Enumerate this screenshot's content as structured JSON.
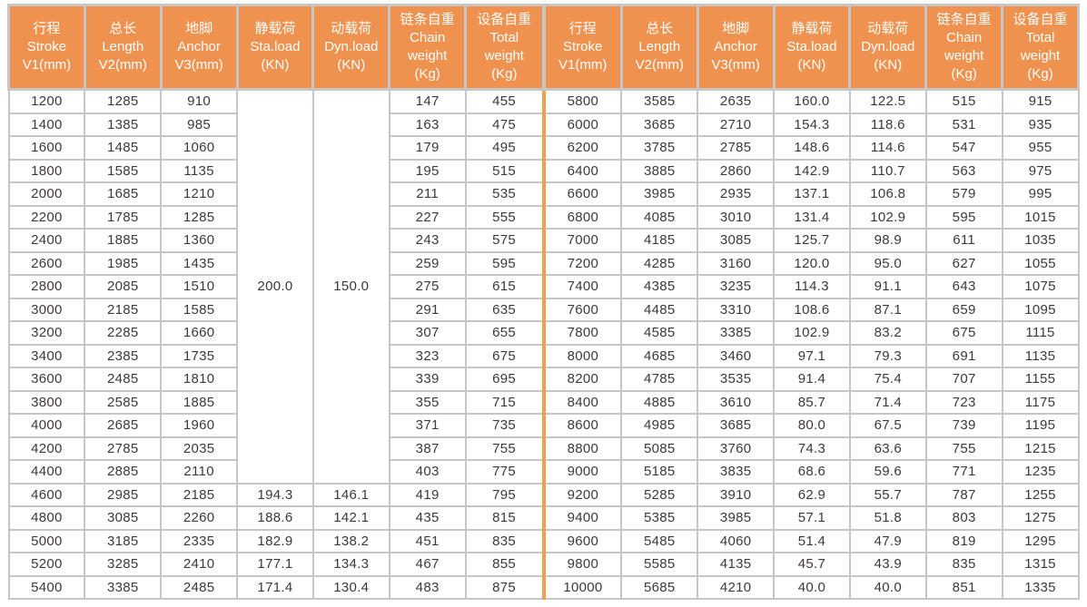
{
  "colors": {
    "header_bg": "#F0924F",
    "divider_orange": "#F0A050",
    "border_gray": "#C6C6C6",
    "header_text": "#FFFFFF",
    "cell_text": "#3C3938",
    "page_bg": "#FFFFFF"
  },
  "table": {
    "column_headers": [
      {
        "name": "stroke",
        "lines": [
          "行程",
          "Stroke",
          "V1(mm)"
        ]
      },
      {
        "name": "length",
        "lines": [
          "总长",
          "Length",
          "V2(mm)"
        ]
      },
      {
        "name": "anchor",
        "lines": [
          "地脚",
          "Anchor",
          "V3(mm)"
        ]
      },
      {
        "name": "static-load",
        "lines": [
          "静载荷",
          "Sta.load",
          "(KN)"
        ]
      },
      {
        "name": "dynamic-load",
        "lines": [
          "动载荷",
          "Dyn.load",
          "(KN)"
        ]
      },
      {
        "name": "chain-weight",
        "lines": [
          "链条自重",
          "Chain",
          "weight",
          "(Kg)"
        ]
      },
      {
        "name": "total-weight",
        "lines": [
          "设备自重",
          "Total",
          "weight",
          "(Kg)"
        ]
      }
    ],
    "left": {
      "merged": {
        "sta_load": "200.0",
        "dyn_load": "150.0",
        "row_span": 17
      },
      "rows": [
        [
          "1200",
          "1285",
          "910",
          null,
          null,
          "147",
          "455"
        ],
        [
          "1400",
          "1385",
          "985",
          null,
          null,
          "163",
          "475"
        ],
        [
          "1600",
          "1485",
          "1060",
          null,
          null,
          "179",
          "495"
        ],
        [
          "1800",
          "1585",
          "1135",
          null,
          null,
          "195",
          "515"
        ],
        [
          "2000",
          "1685",
          "1210",
          null,
          null,
          "211",
          "535"
        ],
        [
          "2200",
          "1785",
          "1285",
          null,
          null,
          "227",
          "555"
        ],
        [
          "2400",
          "1885",
          "1360",
          null,
          null,
          "243",
          "575"
        ],
        [
          "2600",
          "1985",
          "1435",
          null,
          null,
          "259",
          "595"
        ],
        [
          "2800",
          "2085",
          "1510",
          null,
          null,
          "275",
          "615"
        ],
        [
          "3000",
          "2185",
          "1585",
          null,
          null,
          "291",
          "635"
        ],
        [
          "3200",
          "2285",
          "1660",
          null,
          null,
          "307",
          "655"
        ],
        [
          "3400",
          "2385",
          "1735",
          null,
          null,
          "323",
          "675"
        ],
        [
          "3600",
          "2485",
          "1810",
          null,
          null,
          "339",
          "695"
        ],
        [
          "3800",
          "2585",
          "1885",
          null,
          null,
          "355",
          "715"
        ],
        [
          "4000",
          "2685",
          "1960",
          null,
          null,
          "371",
          "735"
        ],
        [
          "4200",
          "2785",
          "2035",
          null,
          null,
          "387",
          "755"
        ],
        [
          "4400",
          "2885",
          "2110",
          null,
          null,
          "403",
          "775"
        ],
        [
          "4600",
          "2985",
          "2185",
          "194.3",
          "146.1",
          "419",
          "795"
        ],
        [
          "4800",
          "3085",
          "2260",
          "188.6",
          "142.1",
          "435",
          "815"
        ],
        [
          "5000",
          "3185",
          "2335",
          "182.9",
          "138.2",
          "451",
          "835"
        ],
        [
          "5200",
          "3285",
          "2410",
          "177.1",
          "134.3",
          "467",
          "855"
        ],
        [
          "5400",
          "3385",
          "2485",
          "171.4",
          "130.4",
          "483",
          "875"
        ]
      ]
    },
    "right": {
      "rows": [
        [
          "5800",
          "3585",
          "2635",
          "160.0",
          "122.5",
          "515",
          "915"
        ],
        [
          "6000",
          "3685",
          "2710",
          "154.3",
          "118.6",
          "531",
          "935"
        ],
        [
          "6200",
          "3785",
          "2785",
          "148.6",
          "114.6",
          "547",
          "955"
        ],
        [
          "6400",
          "3885",
          "2860",
          "142.9",
          "110.7",
          "563",
          "975"
        ],
        [
          "6600",
          "3985",
          "2935",
          "137.1",
          "106.8",
          "579",
          "995"
        ],
        [
          "6800",
          "4085",
          "3010",
          "131.4",
          "102.9",
          "595",
          "1015"
        ],
        [
          "7000",
          "4185",
          "3085",
          "125.7",
          "98.9",
          "611",
          "1035"
        ],
        [
          "7200",
          "4285",
          "3160",
          "120.0",
          "95.0",
          "627",
          "1055"
        ],
        [
          "7400",
          "4385",
          "3235",
          "114.3",
          "91.1",
          "643",
          "1075"
        ],
        [
          "7600",
          "4485",
          "3310",
          "108.6",
          "87.1",
          "659",
          "1095"
        ],
        [
          "7800",
          "4585",
          "3385",
          "102.9",
          "83.2",
          "675",
          "1115"
        ],
        [
          "8000",
          "4685",
          "3460",
          "97.1",
          "79.3",
          "691",
          "1135"
        ],
        [
          "8200",
          "4785",
          "3535",
          "91.4",
          "75.4",
          "707",
          "1155"
        ],
        [
          "8400",
          "4885",
          "3610",
          "85.7",
          "71.4",
          "723",
          "1175"
        ],
        [
          "8600",
          "4985",
          "3685",
          "80.0",
          "67.5",
          "739",
          "1195"
        ],
        [
          "8800",
          "5085",
          "3760",
          "74.3",
          "63.6",
          "755",
          "1215"
        ],
        [
          "9000",
          "5185",
          "3835",
          "68.6",
          "59.6",
          "771",
          "1235"
        ],
        [
          "9200",
          "5285",
          "3910",
          "62.9",
          "55.7",
          "787",
          "1255"
        ],
        [
          "9400",
          "5385",
          "3985",
          "57.1",
          "51.8",
          "803",
          "1275"
        ],
        [
          "9600",
          "5485",
          "4060",
          "51.4",
          "47.9",
          "819",
          "1295"
        ],
        [
          "9800",
          "5585",
          "4135",
          "45.7",
          "43.9",
          "835",
          "1315"
        ],
        [
          "10000",
          "5685",
          "4210",
          "40.0",
          "40.0",
          "851",
          "1335"
        ]
      ]
    }
  }
}
